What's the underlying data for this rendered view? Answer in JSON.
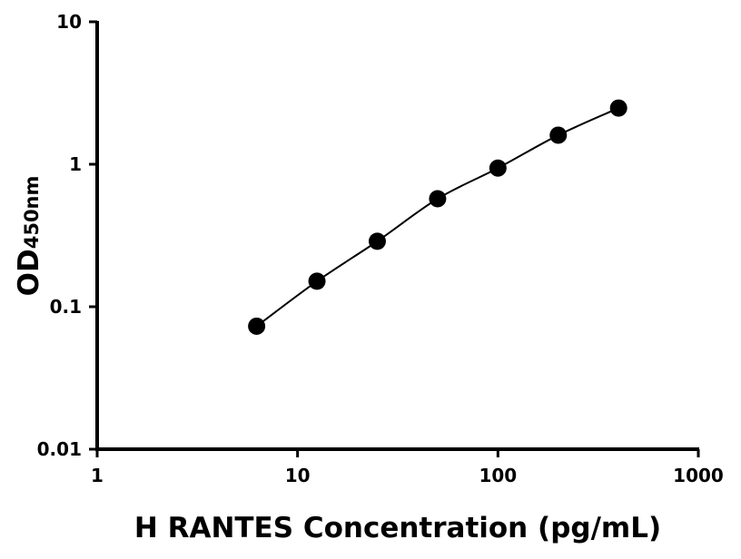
{
  "chart_data": {
    "type": "scatter",
    "title": "",
    "xlabel": "H RANTES Concentration (pg/mL)",
    "ylabel": "OD",
    "ylabel_subscript": "450nm",
    "xscale": "log",
    "yscale": "log",
    "xlim": [
      1,
      1000
    ],
    "ylim": [
      0.01,
      10
    ],
    "xticks": [
      {
        "v": 1,
        "label": "1"
      },
      {
        "v": 10,
        "label": "10"
      },
      {
        "v": 100,
        "label": "100"
      },
      {
        "v": 1000,
        "label": "1000"
      }
    ],
    "yticks": [
      {
        "v": 0.01,
        "label": "0.01"
      },
      {
        "v": 0.1,
        "label": "0.1"
      },
      {
        "v": 1,
        "label": "1"
      },
      {
        "v": 10,
        "label": "10"
      }
    ],
    "grid": false,
    "fit_curve": true,
    "color": "#000000",
    "x": [
      6.25,
      12.5,
      25,
      50,
      100,
      200,
      400
    ],
    "y": [
      0.073,
      0.151,
      0.288,
      0.573,
      0.94,
      1.6,
      2.48
    ]
  }
}
